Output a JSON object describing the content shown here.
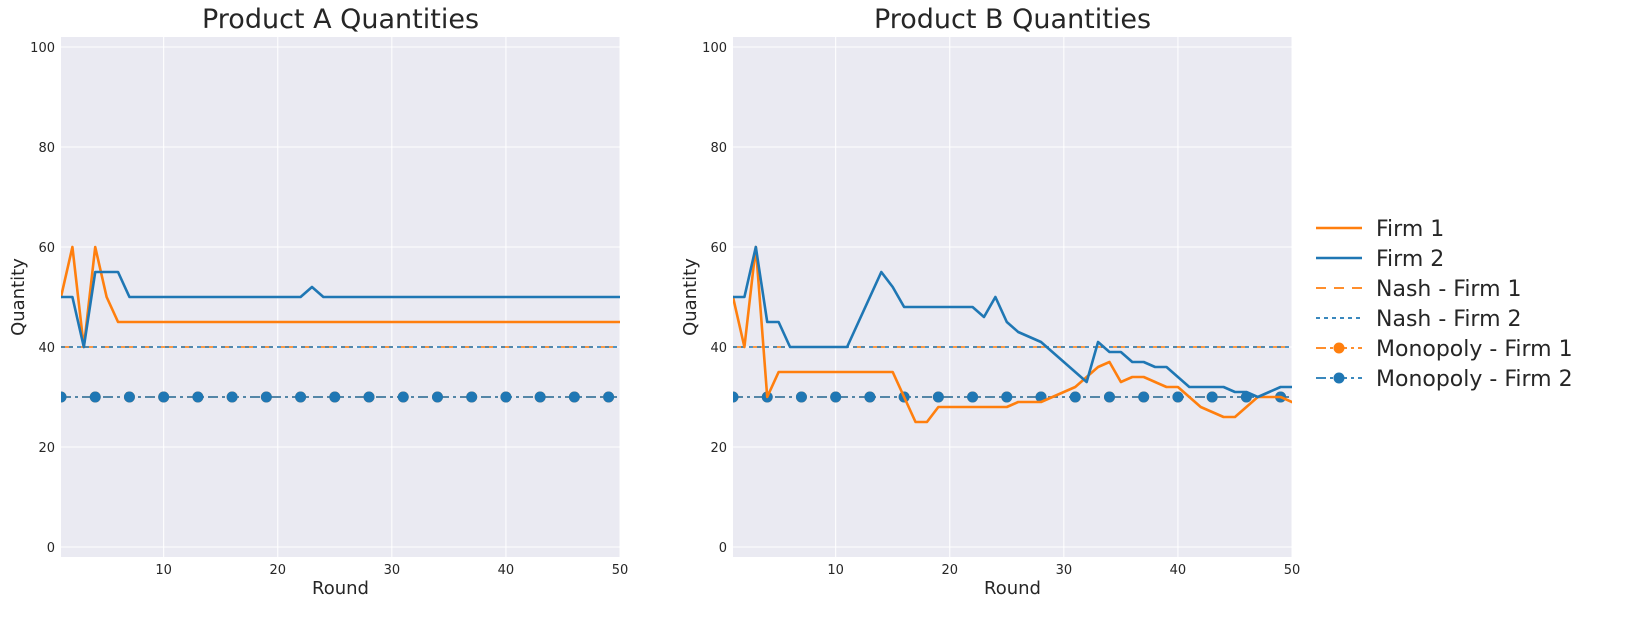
{
  "chart_data": [
    {
      "type": "line",
      "title": "Product A Quantities",
      "xlabel": "Round",
      "ylabel": "Quantity",
      "xlim": [
        1,
        50
      ],
      "ylim": [
        -2,
        102
      ],
      "xticks": [
        10,
        20,
        30,
        40,
        50
      ],
      "yticks": [
        0,
        20,
        40,
        60,
        80,
        100
      ],
      "grid": true,
      "series": [
        {
          "name": "Firm 1",
          "color": "#ff7f0e",
          "style": "solid",
          "x": [
            1,
            2,
            3,
            4,
            5,
            6,
            7,
            8,
            9,
            10,
            11,
            12,
            13,
            14,
            15,
            16,
            17,
            18,
            19,
            20,
            21,
            22,
            23,
            24,
            25,
            26,
            27,
            28,
            29,
            30,
            31,
            32,
            33,
            34,
            35,
            36,
            37,
            38,
            39,
            40,
            41,
            42,
            43,
            44,
            45,
            46,
            47,
            48,
            49,
            50
          ],
          "y": [
            50,
            60,
            40,
            60,
            50,
            45,
            45,
            45,
            45,
            45,
            45,
            45,
            45,
            45,
            45,
            45,
            45,
            45,
            45,
            45,
            45,
            45,
            45,
            45,
            45,
            45,
            45,
            45,
            45,
            45,
            45,
            45,
            45,
            45,
            45,
            45,
            45,
            45,
            45,
            45,
            45,
            45,
            45,
            45,
            45,
            45,
            45,
            45,
            45,
            45
          ]
        },
        {
          "name": "Firm 2",
          "color": "#1f77b4",
          "style": "solid",
          "x": [
            1,
            2,
            3,
            4,
            5,
            6,
            7,
            8,
            9,
            10,
            11,
            12,
            13,
            14,
            15,
            16,
            17,
            18,
            19,
            20,
            21,
            22,
            23,
            24,
            25,
            26,
            27,
            28,
            29,
            30,
            31,
            32,
            33,
            34,
            35,
            36,
            37,
            38,
            39,
            40,
            41,
            42,
            43,
            44,
            45,
            46,
            47,
            48,
            49,
            50
          ],
          "y": [
            50,
            50,
            40,
            55,
            55,
            55,
            50,
            50,
            50,
            50,
            50,
            50,
            50,
            50,
            50,
            50,
            50,
            50,
            50,
            50,
            50,
            50,
            52,
            50,
            50,
            50,
            50,
            50,
            50,
            50,
            50,
            50,
            50,
            50,
            50,
            50,
            50,
            50,
            50,
            50,
            50,
            50,
            50,
            50,
            50,
            50,
            50,
            50,
            50,
            50
          ]
        },
        {
          "name": "Nash - Firm 1",
          "color": "#ff7f0e",
          "style": "dashed",
          "constant": 40
        },
        {
          "name": "Nash - Firm 2",
          "color": "#1f77b4",
          "style": "dotted",
          "constant": 40
        },
        {
          "name": "Monopoly - Firm 1",
          "color": "#ff7f0e",
          "style": "dashdot-markers",
          "constant": 30
        },
        {
          "name": "Monopoly - Firm 2",
          "color": "#1f77b4",
          "style": "dashdot-markers",
          "constant": 30
        }
      ]
    },
    {
      "type": "line",
      "title": "Product B Quantities",
      "xlabel": "Round",
      "ylabel": "Quantity",
      "xlim": [
        1,
        50
      ],
      "ylim": [
        -2,
        102
      ],
      "xticks": [
        10,
        20,
        30,
        40,
        50
      ],
      "yticks": [
        0,
        20,
        40,
        60,
        80,
        100
      ],
      "grid": true,
      "series": [
        {
          "name": "Firm 1",
          "color": "#ff7f0e",
          "style": "solid",
          "x": [
            1,
            2,
            3,
            4,
            5,
            6,
            7,
            8,
            9,
            10,
            11,
            12,
            13,
            14,
            15,
            16,
            17,
            18,
            19,
            20,
            21,
            22,
            23,
            24,
            25,
            26,
            27,
            28,
            29,
            30,
            31,
            32,
            33,
            34,
            35,
            36,
            37,
            38,
            39,
            40,
            41,
            42,
            43,
            44,
            45,
            46,
            47,
            48,
            49,
            50
          ],
          "y": [
            50,
            40,
            60,
            30,
            35,
            35,
            35,
            35,
            35,
            35,
            35,
            35,
            35,
            35,
            35,
            30,
            25,
            25,
            28,
            28,
            28,
            28,
            28,
            28,
            28,
            29,
            29,
            29,
            30,
            31,
            32,
            34,
            36,
            37,
            33,
            34,
            34,
            33,
            32,
            32,
            30,
            28,
            27,
            26,
            26,
            28,
            30,
            30,
            30,
            29
          ]
        },
        {
          "name": "Firm 2",
          "color": "#1f77b4",
          "style": "solid",
          "x": [
            1,
            2,
            3,
            4,
            5,
            6,
            7,
            8,
            9,
            10,
            11,
            12,
            13,
            14,
            15,
            16,
            17,
            18,
            19,
            20,
            21,
            22,
            23,
            24,
            25,
            26,
            27,
            28,
            29,
            30,
            31,
            32,
            33,
            34,
            35,
            36,
            37,
            38,
            39,
            40,
            41,
            42,
            43,
            44,
            45,
            46,
            47,
            48,
            49,
            50
          ],
          "y": [
            50,
            50,
            60,
            45,
            45,
            40,
            40,
            40,
            40,
            40,
            40,
            45,
            50,
            55,
            52,
            48,
            48,
            48,
            48,
            48,
            48,
            48,
            46,
            50,
            45,
            43,
            42,
            41,
            39,
            37,
            35,
            33,
            41,
            39,
            39,
            37,
            37,
            36,
            36,
            34,
            32,
            32,
            32,
            32,
            31,
            31,
            30,
            31,
            32,
            32
          ]
        },
        {
          "name": "Nash - Firm 1",
          "color": "#ff7f0e",
          "style": "dashed",
          "constant": 40
        },
        {
          "name": "Nash - Firm 2",
          "color": "#1f77b4",
          "style": "dotted",
          "constant": 40
        },
        {
          "name": "Monopoly - Firm 1",
          "color": "#ff7f0e",
          "style": "dashdot-markers",
          "constant": 30
        },
        {
          "name": "Monopoly - Firm 2",
          "color": "#1f77b4",
          "style": "dashdot-markers",
          "constant": 30
        }
      ]
    }
  ],
  "legend": {
    "placement": "right-outside",
    "entries": [
      {
        "label": "Firm 1",
        "color": "#ff7f0e",
        "style": "solid"
      },
      {
        "label": "Firm 2",
        "color": "#1f77b4",
        "style": "solid"
      },
      {
        "label": "Nash - Firm 1",
        "color": "#ff7f0e",
        "style": "dashed"
      },
      {
        "label": "Nash - Firm 2",
        "color": "#1f77b4",
        "style": "dotted"
      },
      {
        "label": "Monopoly - Firm 1",
        "color": "#ff7f0e",
        "style": "dashdot-markers"
      },
      {
        "label": "Monopoly - Firm 2",
        "color": "#1f77b4",
        "style": "dashdot-markers"
      }
    ]
  },
  "theme": {
    "plot_bg": "#eaeaf2",
    "grid": "#ffffff",
    "text": "#262626"
  }
}
